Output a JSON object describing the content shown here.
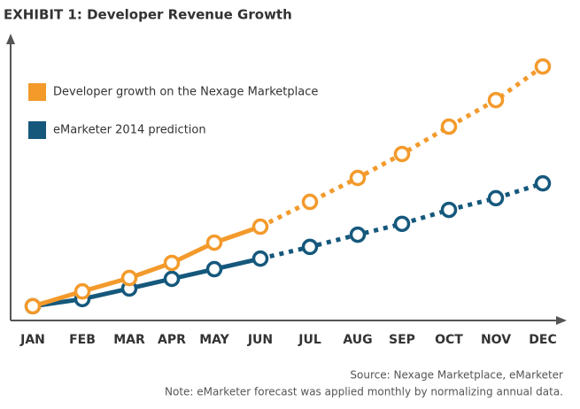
{
  "chart_data": {
    "type": "line",
    "title": "EXHIBIT 1: Developer Revenue Growth",
    "categories": [
      "JAN",
      "FEB",
      "MAR",
      "APR",
      "MAY",
      "JUN",
      "JUL",
      "AUG",
      "SEP",
      "OCT",
      "NOV",
      "DEC"
    ],
    "series": [
      {
        "name": "Developer growth on the Nexage Marketplace",
        "color": "#f39a2b",
        "values": [
          5,
          10.2,
          14.9,
          20.2,
          27.3,
          32.9,
          41.6,
          50,
          58.4,
          68,
          77.3,
          89.1
        ]
      },
      {
        "name": "eMarketer 2014 prediction",
        "color": "#15587c",
        "values": [
          5,
          7.5,
          11.2,
          14.6,
          18,
          21.7,
          25.8,
          30.1,
          33.9,
          38.8,
          42.9,
          48.1
        ]
      }
    ],
    "dotted_from_index": 5,
    "ylim": [
      0,
      100
    ],
    "source": "Source: Nexage Marketplace, eMarketer",
    "note": "Note: eMarketer forecast was applied monthly by normalizing annual data."
  }
}
